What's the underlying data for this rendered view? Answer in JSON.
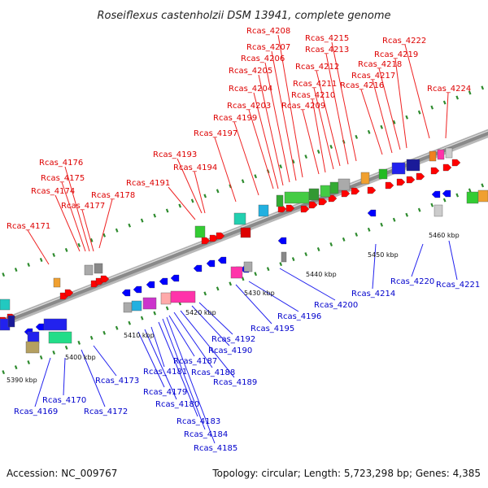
{
  "title": "Roseiflexus castenholzii DSM 13941, complete genome",
  "footer": {
    "accession": "Accession: NC_009767",
    "summary": "Topology: circular; Length: 5,723,298 bp; Genes: 4,385"
  },
  "colors": {
    "forward_label": "#dd0000",
    "reverse_label": "#0000cc",
    "dna_band": "#8a8a8a",
    "tick": "#2e8b2e",
    "forward_arrow": "#ff0000",
    "reverse_arrow": "#0000ff"
  },
  "scale_labels": [
    "5390 kbp",
    "5400 kbp",
    "5410 kbp",
    "5420 kbp",
    "5430 kbp",
    "5440 kbp",
    "5450 kbp",
    "5460 kbp"
  ],
  "forward_genes": [
    "Rcas_4171",
    "Rcas_4174",
    "Rcas_4175",
    "Rcas_4176",
    "Rcas_4177",
    "Rcas_4178",
    "Rcas_4191",
    "Rcas_4193",
    "Rcas_4194",
    "Rcas_4197",
    "Rcas_4199",
    "Rcas_4203",
    "Rcas_4204",
    "Rcas_4205",
    "Rcas_4206",
    "Rcas_4207",
    "Rcas_4208",
    "Rcas_4209",
    "Rcas_4210",
    "Rcas_4211",
    "Rcas_4212",
    "Rcas_4213",
    "Rcas_4215",
    "Rcas_4216",
    "Rcas_4217",
    "Rcas_4218",
    "Rcas_4219",
    "Rcas_4222",
    "Rcas_4224"
  ],
  "reverse_genes": [
    "Rcas_4169",
    "Rcas_4170",
    "Rcas_4172",
    "Rcas_4173",
    "Rcas_4179",
    "Rcas_4180",
    "Rcas_4181",
    "Rcas_4183",
    "Rcas_4184",
    "Rcas_4185",
    "Rcas_4187",
    "Rcas_4188",
    "Rcas_4189",
    "Rcas_4190",
    "Rcas_4192",
    "Rcas_4195",
    "Rcas_4196",
    "Rcas_4200",
    "Rcas_4214",
    "Rcas_4220",
    "Rcas_4221"
  ]
}
